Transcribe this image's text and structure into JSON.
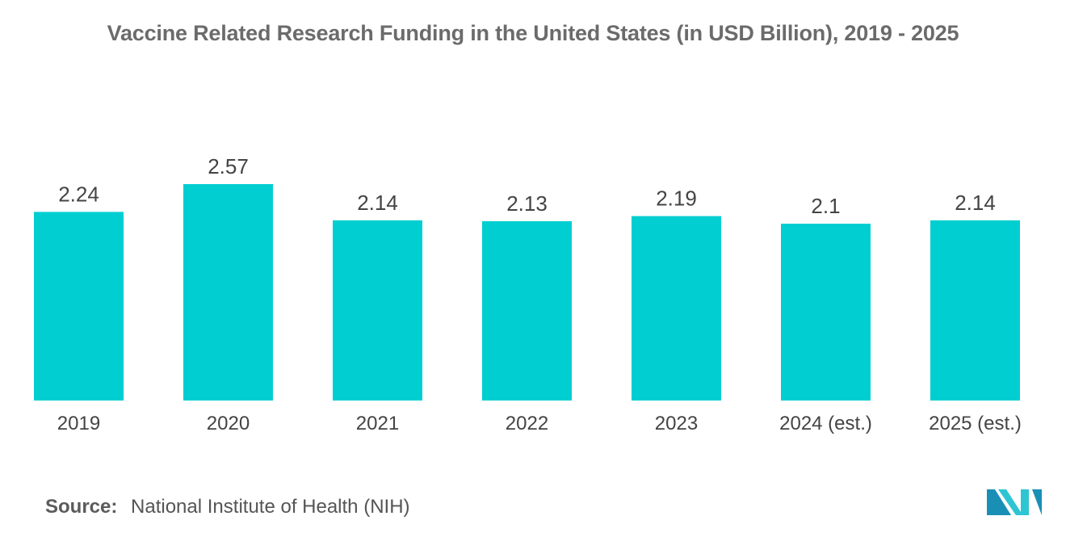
{
  "chart_data": {
    "type": "bar",
    "title": "Vaccine Related Research Funding in the United States (in USD Billion), 2019 - 2025",
    "categories": [
      "2019",
      "2020",
      "2021",
      "2022",
      "2023",
      "2024 (est.)",
      "2025 (est.)"
    ],
    "values": [
      2.24,
      2.57,
      2.14,
      2.13,
      2.19,
      2.1,
      2.14
    ],
    "value_labels": [
      "2.24",
      "2.57",
      "2.14",
      "2.13",
      "2.19",
      "2.1",
      "2.14"
    ],
    "xlabel": "",
    "ylabel": "",
    "ylim": [
      0,
      2.57
    ],
    "grid": false,
    "bar_color": "#00ced1"
  },
  "source": {
    "label": "Source:",
    "text": "National Institute of Health (NIH)"
  },
  "logo": {
    "icon": "mordor-logo-icon",
    "colors": [
      "#1a8fb5",
      "#2ec5d3"
    ]
  }
}
